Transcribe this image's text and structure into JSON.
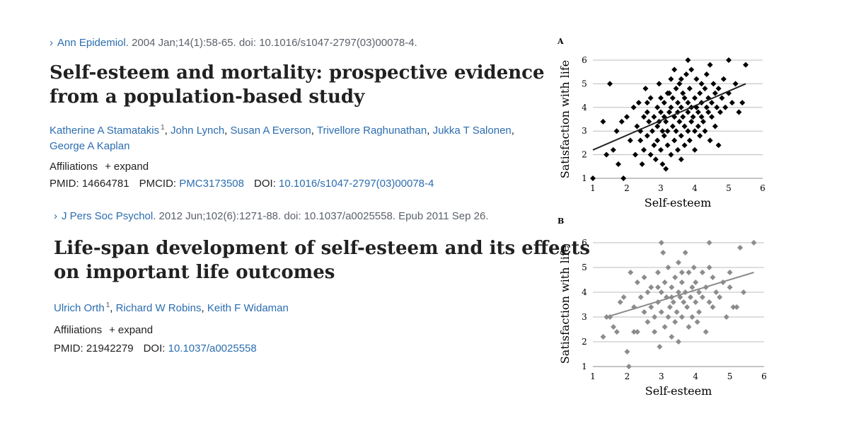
{
  "article1": {
    "journal": "Ann Epidemiol",
    "citation_rest": ". 2004 Jan;14(1):58-65. doi: 10.1016/s1047-2797(03)00078-4.",
    "title_line1": "Self-esteem and mortality: prospective evidence",
    "title_line2": "from a population-based study",
    "authors": [
      "Katherine A Stamatakis",
      "John Lynch",
      "Susan A Everson",
      "Trivellore Raghunathan",
      "Jukka T Salonen",
      "George A Kaplan"
    ],
    "first_author_sup": "1",
    "affiliations_label": "Affiliations",
    "expand_label": "expand",
    "pmid_label": "PMID:",
    "pmid": "14664781",
    "pmcid_label": "PMCID:",
    "pmcid": "PMC3173508",
    "doi_label": "DOI:",
    "doi": "10.1016/s1047-2797(03)00078-4"
  },
  "article2": {
    "journal": "J Pers Soc Psychol",
    "citation_rest": ". 2012 Jun;102(6):1271-88. doi: 10.1037/a0025558. Epub 2011 Sep 26.",
    "title_line1": "Life-span development of self-esteem and its effects",
    "title_line2": "on important life outcomes",
    "authors": [
      "Ulrich Orth",
      "Richard W Robins",
      "Keith F Widaman"
    ],
    "first_author_sup": "1",
    "affiliations_label": "Affiliations",
    "expand_label": "expand",
    "pmid_label": "PMID:",
    "pmid": "21942279",
    "doi_label": "DOI:",
    "doi": "10.1037/a0025558"
  },
  "icons": {
    "chevron": "chevron-right-icon",
    "plus": "plus-icon"
  },
  "colors": {
    "link": "#2c6db0",
    "series_a": "#000000",
    "series_b": "#8c8c8c"
  },
  "chart_data": [
    {
      "type": "scatter",
      "panel_label": "A",
      "xlabel": "Self-esteem",
      "ylabel": "Satisfaction with life",
      "xlim": [
        1,
        6
      ],
      "ylim": [
        1,
        6
      ],
      "xticks": [
        "1",
        "2",
        "3",
        "4",
        "5",
        "6"
      ],
      "yticks": [
        "1",
        "2",
        "3",
        "4",
        "5",
        "6"
      ],
      "grid": "horizontal",
      "marker": "diamond",
      "trendline": {
        "x": [
          1,
          5.5
        ],
        "y": [
          2.2,
          5.0
        ]
      },
      "points": [
        [
          1.0,
          1.0
        ],
        [
          1.3,
          3.4
        ],
        [
          1.5,
          5.0
        ],
        [
          1.4,
          2.0
        ],
        [
          1.6,
          2.2
        ],
        [
          1.7,
          3.0
        ],
        [
          1.75,
          1.6
        ],
        [
          1.85,
          3.4
        ],
        [
          1.9,
          1.0
        ],
        [
          2.0,
          3.6
        ],
        [
          2.1,
          2.6
        ],
        [
          2.2,
          4.0
        ],
        [
          2.25,
          2.0
        ],
        [
          2.3,
          3.2
        ],
        [
          2.35,
          4.2
        ],
        [
          2.4,
          3.0
        ],
        [
          2.4,
          2.6
        ],
        [
          2.45,
          1.6
        ],
        [
          2.5,
          3.6
        ],
        [
          2.5,
          2.2
        ],
        [
          2.55,
          4.8
        ],
        [
          2.6,
          2.8
        ],
        [
          2.6,
          3.8
        ],
        [
          2.65,
          3.4
        ],
        [
          2.7,
          2.0
        ],
        [
          2.7,
          4.4
        ],
        [
          2.75,
          3.0
        ],
        [
          2.8,
          2.4
        ],
        [
          2.8,
          3.6
        ],
        [
          2.85,
          1.8
        ],
        [
          2.9,
          4.0
        ],
        [
          2.9,
          3.2
        ],
        [
          2.9,
          2.6
        ],
        [
          2.95,
          5.0
        ],
        [
          3.0,
          3.8
        ],
        [
          3.0,
          2.2
        ],
        [
          3.0,
          4.4
        ],
        [
          3.05,
          3.0
        ],
        [
          3.05,
          1.6
        ],
        [
          3.1,
          3.6
        ],
        [
          3.1,
          2.8
        ],
        [
          3.1,
          4.2
        ],
        [
          3.15,
          3.4
        ],
        [
          3.15,
          1.4
        ],
        [
          3.2,
          4.6
        ],
        [
          3.2,
          3.0
        ],
        [
          3.2,
          2.4
        ],
        [
          3.25,
          3.8
        ],
        [
          3.3,
          4.0
        ],
        [
          3.3,
          2.0
        ],
        [
          3.3,
          5.2
        ],
        [
          3.35,
          3.2
        ],
        [
          3.35,
          4.4
        ],
        [
          3.4,
          3.6
        ],
        [
          3.4,
          2.6
        ],
        [
          3.45,
          4.8
        ],
        [
          3.45,
          3.0
        ],
        [
          3.5,
          3.8
        ],
        [
          3.5,
          2.2
        ],
        [
          3.5,
          4.2
        ],
        [
          3.55,
          3.4
        ],
        [
          3.55,
          5.0
        ],
        [
          3.6,
          4.0
        ],
        [
          3.6,
          2.8
        ],
        [
          3.6,
          1.8
        ],
        [
          3.65,
          4.6
        ],
        [
          3.65,
          3.6
        ],
        [
          3.7,
          3.2
        ],
        [
          3.7,
          4.4
        ],
        [
          3.7,
          2.4
        ],
        [
          3.75,
          5.4
        ],
        [
          3.8,
          3.8
        ],
        [
          3.8,
          3.0
        ],
        [
          3.8,
          4.2
        ],
        [
          3.85,
          2.6
        ],
        [
          3.85,
          4.8
        ],
        [
          3.9,
          3.4
        ],
        [
          3.9,
          4.0
        ],
        [
          3.9,
          5.6
        ],
        [
          3.95,
          3.6
        ],
        [
          4.0,
          4.4
        ],
        [
          4.0,
          3.0
        ],
        [
          4.0,
          2.2
        ],
        [
          4.05,
          4.0
        ],
        [
          4.05,
          5.2
        ],
        [
          4.1,
          3.8
        ],
        [
          4.1,
          3.2
        ],
        [
          4.15,
          4.6
        ],
        [
          4.15,
          2.8
        ],
        [
          4.2,
          4.2
        ],
        [
          4.2,
          3.6
        ],
        [
          4.2,
          5.0
        ],
        [
          4.25,
          3.4
        ],
        [
          4.3,
          4.8
        ],
        [
          4.3,
          3.0
        ],
        [
          4.35,
          4.0
        ],
        [
          4.35,
          5.4
        ],
        [
          4.4,
          3.8
        ],
        [
          4.4,
          4.4
        ],
        [
          4.45,
          2.6
        ],
        [
          4.5,
          4.2
        ],
        [
          4.5,
          3.6
        ],
        [
          4.55,
          5.0
        ],
        [
          4.6,
          4.6
        ],
        [
          4.6,
          3.2
        ],
        [
          4.65,
          4.0
        ],
        [
          4.7,
          4.8
        ],
        [
          4.7,
          2.4
        ],
        [
          4.75,
          3.8
        ],
        [
          4.8,
          4.4
        ],
        [
          4.85,
          5.2
        ],
        [
          4.9,
          4.0
        ],
        [
          5.0,
          4.6
        ],
        [
          5.0,
          6.0
        ],
        [
          5.1,
          4.2
        ],
        [
          5.2,
          5.0
        ],
        [
          5.3,
          3.8
        ],
        [
          5.4,
          4.2
        ],
        [
          5.5,
          5.8
        ],
        [
          3.8,
          6.0
        ],
        [
          3.4,
          5.6
        ],
        [
          2.6,
          4.2
        ],
        [
          4.45,
          5.8
        ],
        [
          3.25,
          4.6
        ],
        [
          2.95,
          3.4
        ],
        [
          3.6,
          5.2
        ]
      ]
    },
    {
      "type": "scatter",
      "panel_label": "B",
      "xlabel": "Self-esteem",
      "ylabel": "Satisfaction with life",
      "xlim": [
        1,
        6
      ],
      "ylim": [
        1,
        6
      ],
      "xticks": [
        "1",
        "2",
        "3",
        "4",
        "5",
        "6"
      ],
      "yticks": [
        "1",
        "2",
        "3",
        "4",
        "5",
        "6"
      ],
      "grid": "horizontal",
      "marker": "diamond",
      "trendline": {
        "x": [
          1.4,
          5.7
        ],
        "y": [
          3.0,
          4.8
        ]
      },
      "points": [
        [
          1.3,
          2.2
        ],
        [
          1.4,
          3.0
        ],
        [
          1.5,
          3.0
        ],
        [
          1.6,
          2.6
        ],
        [
          1.7,
          2.4
        ],
        [
          1.8,
          3.6
        ],
        [
          1.9,
          3.8
        ],
        [
          2.0,
          1.6
        ],
        [
          2.05,
          1.0
        ],
        [
          2.1,
          4.8
        ],
        [
          2.2,
          2.4
        ],
        [
          2.2,
          3.4
        ],
        [
          2.3,
          4.4
        ],
        [
          2.3,
          2.4
        ],
        [
          2.4,
          3.8
        ],
        [
          2.5,
          4.6
        ],
        [
          2.5,
          3.2
        ],
        [
          2.6,
          4.0
        ],
        [
          2.6,
          2.8
        ],
        [
          2.7,
          3.4
        ],
        [
          2.7,
          4.2
        ],
        [
          2.8,
          3.0
        ],
        [
          2.8,
          2.4
        ],
        [
          2.9,
          4.8
        ],
        [
          2.9,
          3.6
        ],
        [
          2.95,
          1.8
        ],
        [
          3.0,
          6.0
        ],
        [
          3.0,
          4.0
        ],
        [
          3.0,
          3.2
        ],
        [
          3.05,
          5.6
        ],
        [
          3.1,
          2.6
        ],
        [
          3.1,
          4.4
        ],
        [
          3.15,
          3.8
        ],
        [
          3.2,
          3.0
        ],
        [
          3.2,
          5.0
        ],
        [
          3.25,
          3.4
        ],
        [
          3.3,
          4.2
        ],
        [
          3.3,
          2.2
        ],
        [
          3.35,
          3.6
        ],
        [
          3.4,
          4.6
        ],
        [
          3.4,
          2.8
        ],
        [
          3.45,
          3.2
        ],
        [
          3.5,
          4.0
        ],
        [
          3.5,
          5.2
        ],
        [
          3.5,
          2.0
        ],
        [
          3.55,
          3.8
        ],
        [
          3.6,
          4.4
        ],
        [
          3.6,
          3.0
        ],
        [
          3.65,
          3.6
        ],
        [
          3.7,
          5.6
        ],
        [
          3.7,
          4.0
        ],
        [
          3.75,
          3.4
        ],
        [
          3.8,
          4.8
        ],
        [
          3.8,
          2.6
        ],
        [
          3.85,
          3.8
        ],
        [
          3.9,
          4.2
        ],
        [
          3.9,
          3.0
        ],
        [
          3.95,
          5.0
        ],
        [
          4.0,
          3.6
        ],
        [
          4.0,
          4.4
        ],
        [
          4.05,
          2.8
        ],
        [
          4.1,
          4.0
        ],
        [
          4.1,
          3.2
        ],
        [
          4.2,
          4.8
        ],
        [
          4.2,
          3.8
        ],
        [
          4.3,
          4.2
        ],
        [
          4.3,
          2.4
        ],
        [
          4.4,
          5.0
        ],
        [
          4.4,
          3.6
        ],
        [
          4.5,
          4.6
        ],
        [
          4.5,
          3.4
        ],
        [
          4.6,
          4.0
        ],
        [
          4.7,
          3.8
        ],
        [
          4.8,
          4.4
        ],
        [
          4.9,
          3.0
        ],
        [
          5.0,
          4.8
        ],
        [
          5.0,
          4.2
        ],
        [
          5.1,
          3.4
        ],
        [
          5.2,
          3.4
        ],
        [
          5.3,
          5.8
        ],
        [
          5.4,
          4.0
        ],
        [
          5.7,
          6.0
        ],
        [
          4.4,
          6.0
        ],
        [
          3.6,
          4.8
        ],
        [
          2.9,
          4.2
        ],
        [
          3.3,
          3.8
        ]
      ]
    }
  ]
}
